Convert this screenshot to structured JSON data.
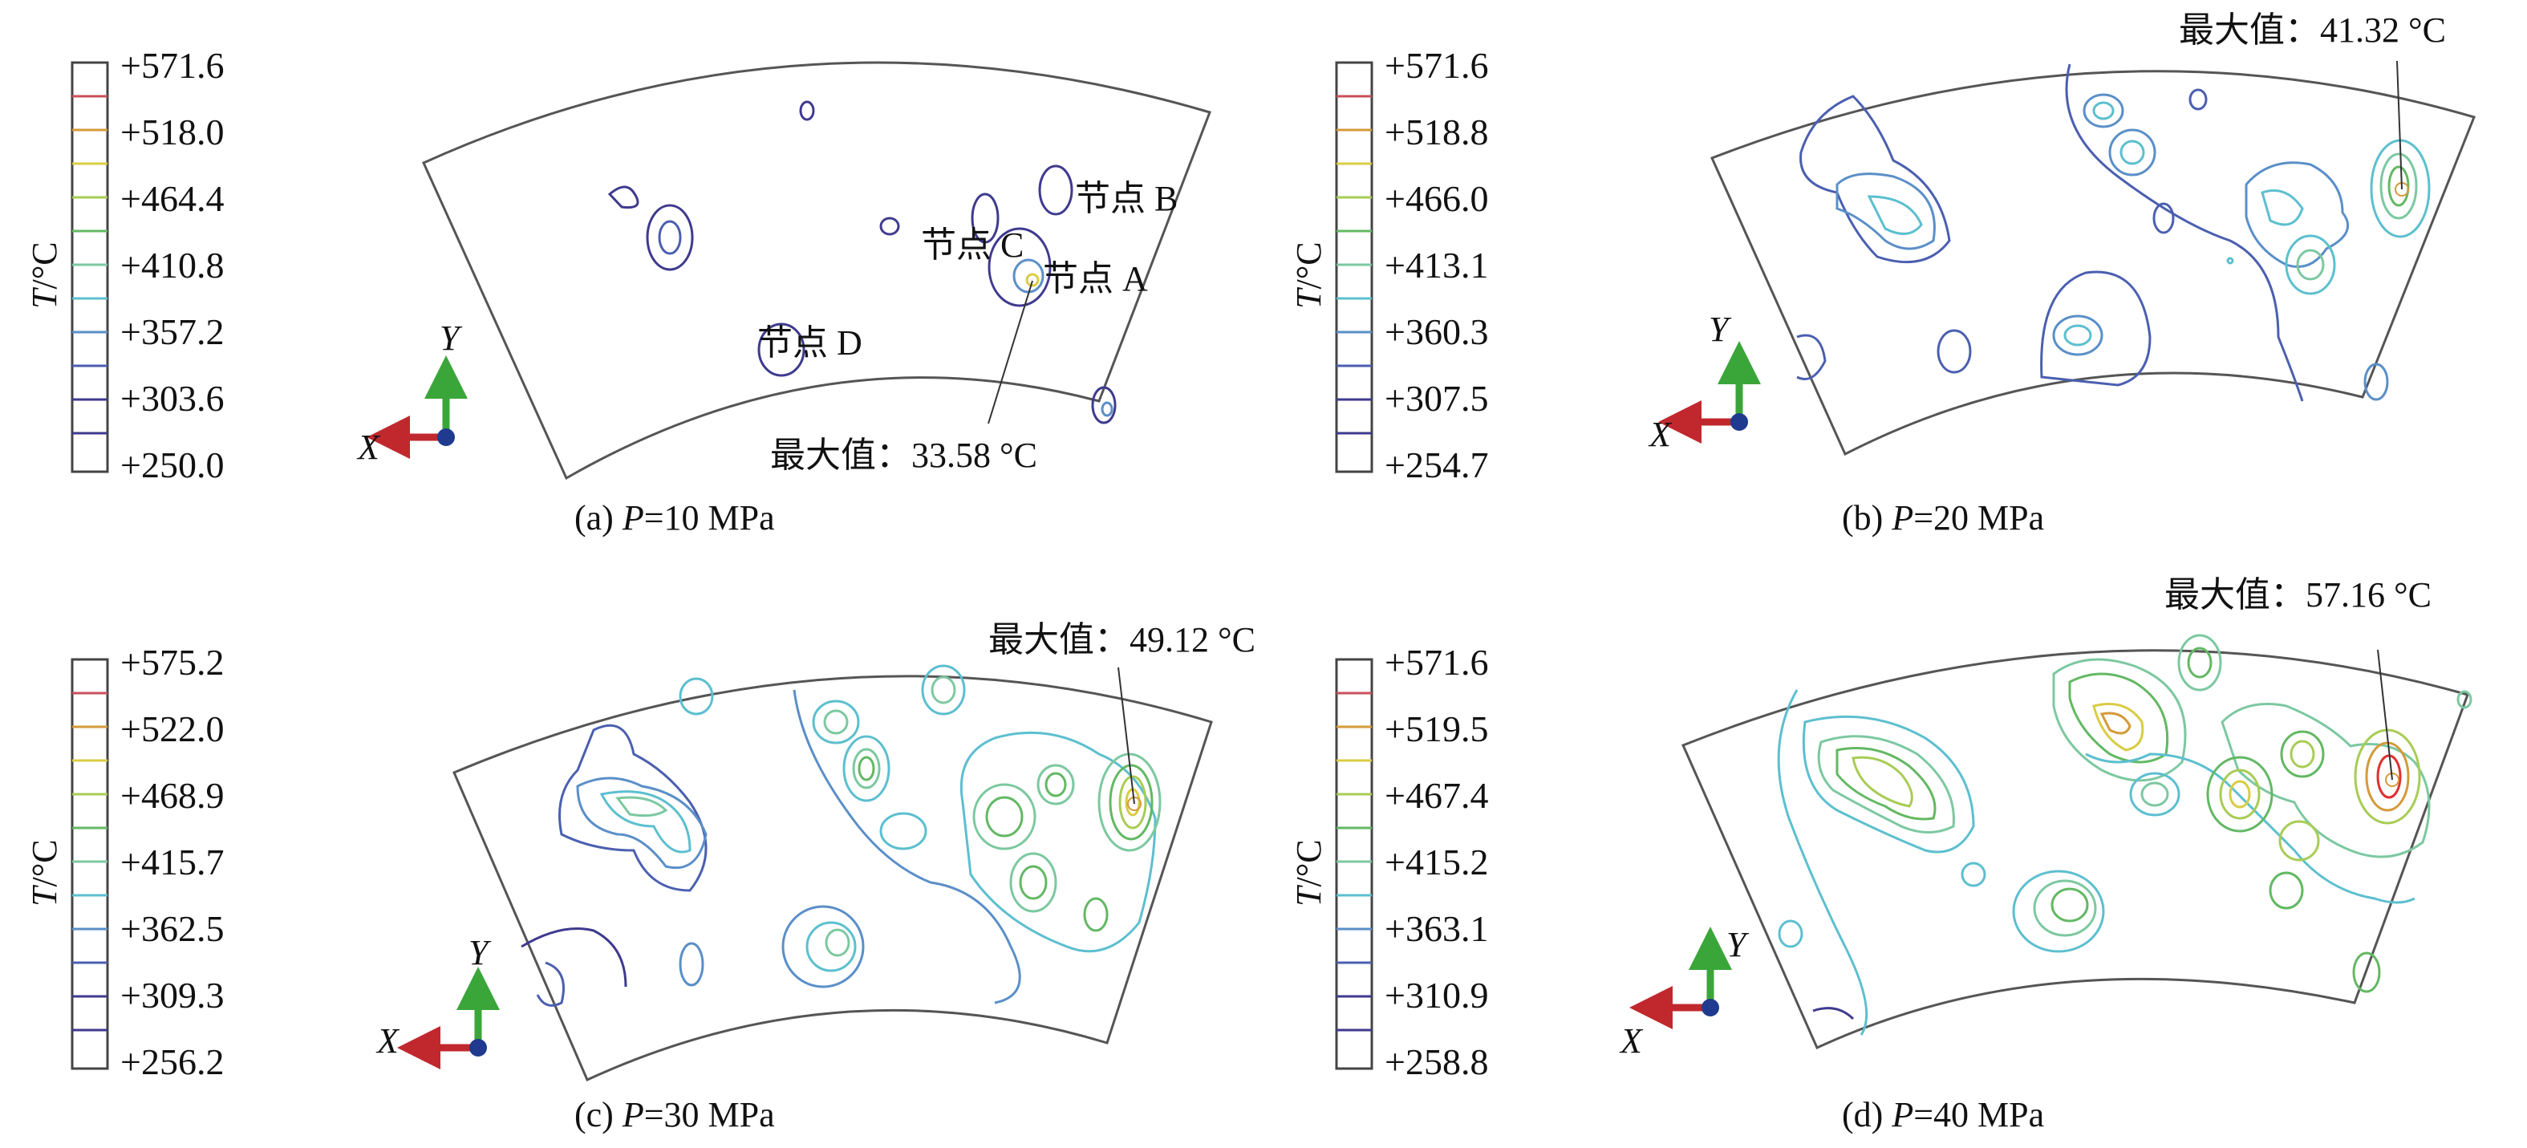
{
  "colors": {
    "outline": "#555555",
    "contour_levels": [
      "#3f3a8e",
      "#4b5fb0",
      "#5a8fc8",
      "#5cbfcf",
      "#7cc8a0",
      "#63b863",
      "#a8cc55",
      "#d9cc44",
      "#d49a3a",
      "#c8505a"
    ],
    "hotspot": "#e03030",
    "axis_x": "#c0282d",
    "axis_y": "#3aa63a",
    "axis_origin": "#1f3a8e"
  },
  "legend_title_italic": "T",
  "legend_title_rest": "/°C",
  "panels": [
    {
      "id": "a",
      "caption_prefix": "(a) ",
      "caption_italic": "P",
      "caption_rest": "=10 MPa",
      "legend_ticks": [
        "+571.6",
        "+518.0",
        "+464.4",
        "+410.8",
        "+357.2",
        "+303.6",
        "+250.0"
      ],
      "max_label": "最大值：33.58 °C",
      "nodes": [
        "节点 B",
        "节点 C",
        "节点 A",
        "节点 D"
      ],
      "axis_x_label": "X",
      "axis_y_label": "Y"
    },
    {
      "id": "b",
      "caption_prefix": "(b) ",
      "caption_italic": "P",
      "caption_rest": "=20 MPa",
      "legend_ticks": [
        "+571.6",
        "+518.8",
        "+466.0",
        "+413.1",
        "+360.3",
        "+307.5",
        "+254.7"
      ],
      "max_label": "最大值：41.32 °C",
      "axis_x_label": "X",
      "axis_y_label": "Y"
    },
    {
      "id": "c",
      "caption_prefix": "(c) ",
      "caption_italic": "P",
      "caption_rest": "=30 MPa",
      "legend_ticks": [
        "+575.2",
        "+522.0",
        "+468.9",
        "+415.7",
        "+362.5",
        "+309.3",
        "+256.2"
      ],
      "max_label": "最大值：49.12 °C",
      "axis_x_label": "X",
      "axis_y_label": "Y"
    },
    {
      "id": "d",
      "caption_prefix": "(d) ",
      "caption_italic": "P",
      "caption_rest": "=40 MPa",
      "legend_ticks": [
        "+571.6",
        "+519.5",
        "+467.4",
        "+415.2",
        "+363.1",
        "+310.9",
        "+258.8"
      ],
      "max_label": "最大值：57.16 °C",
      "axis_x_label": "X",
      "axis_y_label": "Y"
    }
  ]
}
